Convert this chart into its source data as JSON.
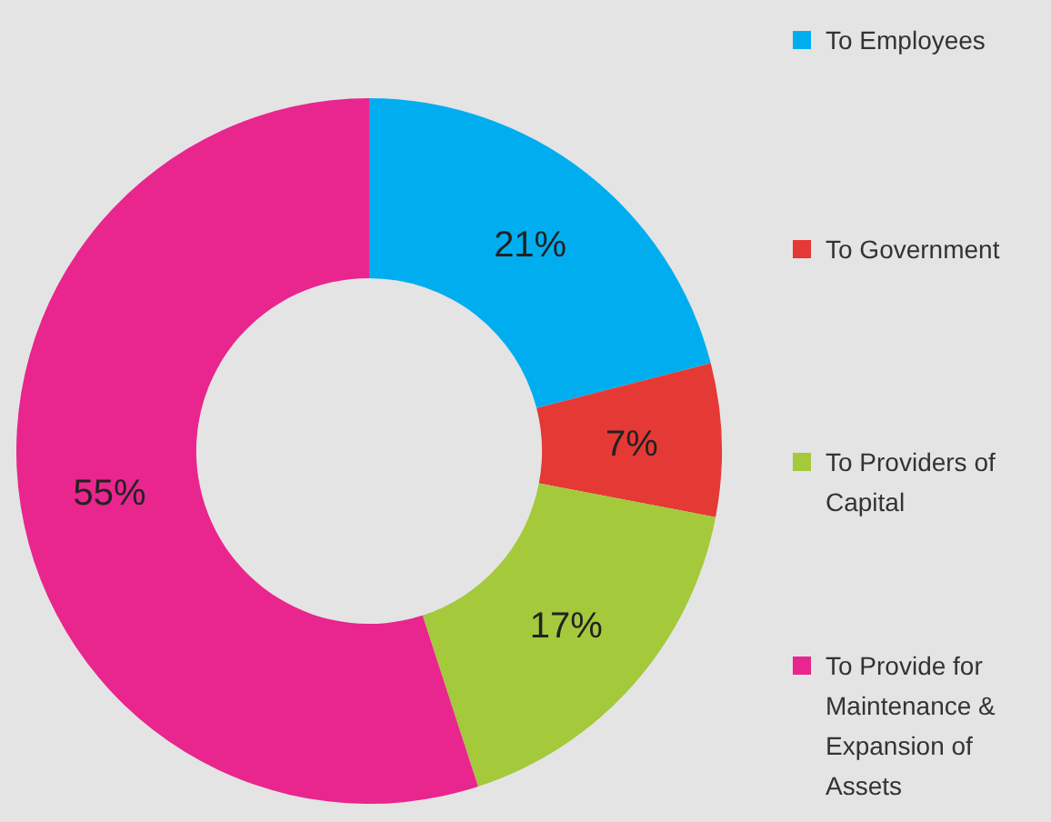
{
  "chart_data": {
    "type": "donut",
    "categories": [
      "To Employees",
      "To Government",
      "To Providers of Capital",
      "To Provide for Maintenance & Expansion of Assets"
    ],
    "values": [
      21,
      7,
      17,
      55
    ],
    "value_labels": [
      "21%",
      "7%",
      "17%",
      "55%"
    ],
    "colors": [
      "#00aeef",
      "#e53935",
      "#a4c93b",
      "#e9258e"
    ],
    "legend": "right"
  }
}
